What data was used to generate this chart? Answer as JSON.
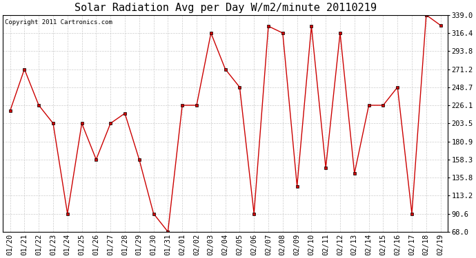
{
  "title": "Solar Radiation Avg per Day W/m2/minute 20110219",
  "copyright_text": "Copyright 2011 Cartronics.com",
  "x_labels": [
    "01/20",
    "01/21",
    "01/22",
    "01/23",
    "01/24",
    "01/25",
    "01/26",
    "01/27",
    "01/28",
    "01/29",
    "01/30",
    "01/31",
    "02/01",
    "02/02",
    "02/03",
    "02/04",
    "02/05",
    "02/06",
    "02/07",
    "02/08",
    "02/09",
    "02/10",
    "02/11",
    "02/12",
    "02/13",
    "02/14",
    "02/15",
    "02/16",
    "02/17",
    "02/18",
    "02/19"
  ],
  "y_values": [
    219.0,
    271.2,
    226.1,
    203.5,
    90.6,
    203.5,
    158.3,
    203.5,
    216.0,
    158.3,
    90.6,
    68.0,
    226.1,
    226.1,
    316.4,
    271.2,
    248.7,
    90.6,
    325.0,
    316.4,
    125.0,
    325.0,
    148.0,
    316.4,
    141.0,
    226.1,
    226.1,
    248.7,
    90.6,
    339.0,
    326.0
  ],
  "line_color": "#cc0000",
  "marker_color": "#cc0000",
  "bg_color": "#ffffff",
  "grid_color": "#cccccc",
  "y_min": 68.0,
  "y_max": 339.0,
  "y_ticks": [
    68.0,
    90.6,
    113.2,
    135.8,
    158.3,
    180.9,
    203.5,
    226.1,
    248.7,
    271.2,
    293.8,
    316.4,
    339.0
  ],
  "title_fontsize": 11,
  "copyright_fontsize": 6.5,
  "tick_fontsize": 7.5
}
